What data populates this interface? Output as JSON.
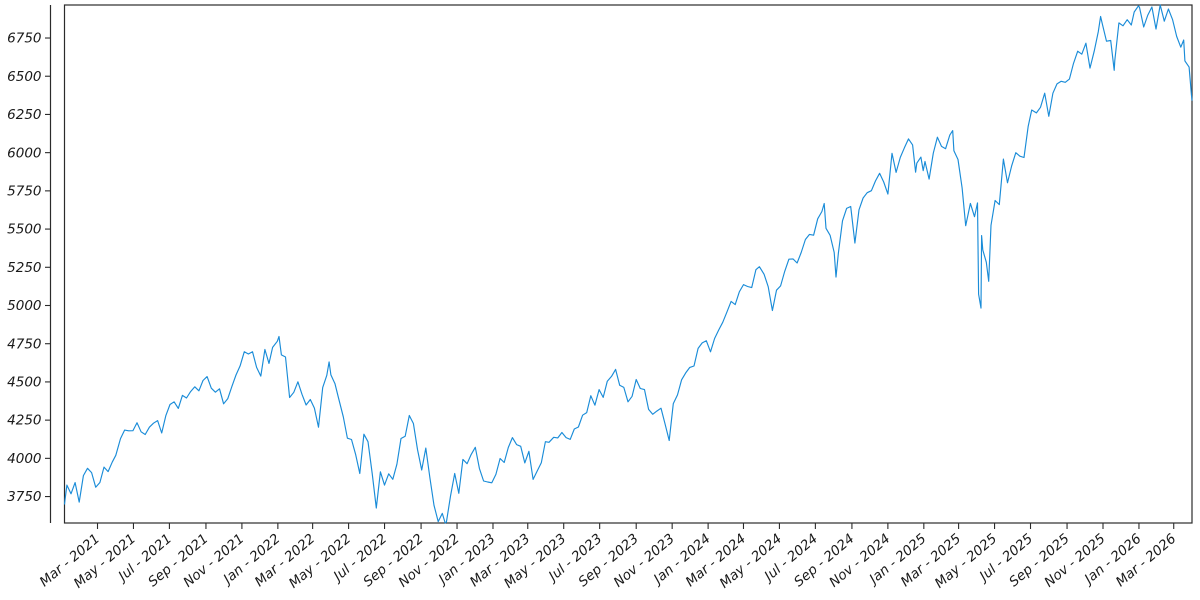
{
  "chart_data": {
    "type": "line",
    "title": "",
    "xlabel": "",
    "ylabel": "",
    "grid": false,
    "legend_position": "none",
    "line_color": "#1a8cd8",
    "axis_color": "#2b2b2b",
    "text_color": "#1a1a1a",
    "background_color": "#ffffff",
    "ylim": [
      3577,
      6966
    ],
    "y_ticks": [
      3750,
      4000,
      4250,
      4500,
      4750,
      5000,
      5250,
      5500,
      5750,
      6000,
      6250,
      6500,
      6750
    ],
    "x_ticks": [
      {
        "t": 59,
        "label": "Mar - 2021"
      },
      {
        "t": 120,
        "label": "May - 2021"
      },
      {
        "t": 181,
        "label": "Jul - 2021"
      },
      {
        "t": 243,
        "label": "Sep - 2021"
      },
      {
        "t": 304,
        "label": "Nov - 2021"
      },
      {
        "t": 365,
        "label": "Jan - 2022"
      },
      {
        "t": 424,
        "label": "Mar - 2022"
      },
      {
        "t": 485,
        "label": "May - 2022"
      },
      {
        "t": 546,
        "label": "Jul - 2022"
      },
      {
        "t": 608,
        "label": "Sep - 2022"
      },
      {
        "t": 669,
        "label": "Nov - 2022"
      },
      {
        "t": 730,
        "label": "Jan - 2023"
      },
      {
        "t": 789,
        "label": "Mar - 2023"
      },
      {
        "t": 850,
        "label": "May - 2023"
      },
      {
        "t": 911,
        "label": "Jul - 2023"
      },
      {
        "t": 973,
        "label": "Sep - 2023"
      },
      {
        "t": 1034,
        "label": "Nov - 2023"
      },
      {
        "t": 1095,
        "label": "Jan - 2024"
      },
      {
        "t": 1155,
        "label": "Mar - 2024"
      },
      {
        "t": 1216,
        "label": "May - 2024"
      },
      {
        "t": 1277,
        "label": "Jul - 2024"
      },
      {
        "t": 1339,
        "label": "Sep - 2024"
      },
      {
        "t": 1400,
        "label": "Nov - 2024"
      },
      {
        "t": 1461,
        "label": "Jan - 2025"
      },
      {
        "t": 1520,
        "label": "Mar - 2025"
      },
      {
        "t": 1581,
        "label": "May - 2025"
      },
      {
        "t": 1642,
        "label": "Jul - 2025"
      },
      {
        "t": 1704,
        "label": "Sep - 2025"
      },
      {
        "t": 1765,
        "label": "Nov - 2025"
      },
      {
        "t": 1826,
        "label": "Jan - 2026"
      },
      {
        "t": 1885,
        "label": "Mar - 2026"
      }
    ],
    "x_unit": "days, t=0 at first tick minus 59 (Jan 1 2021); series spans Jan 2021 - Apr 2026",
    "points": [
      [
        3,
        3701
      ],
      [
        7,
        3825
      ],
      [
        14,
        3768
      ],
      [
        21,
        3841
      ],
      [
        28,
        3714
      ],
      [
        35,
        3887
      ],
      [
        42,
        3935
      ],
      [
        49,
        3907
      ],
      [
        56,
        3811
      ],
      [
        63,
        3842
      ],
      [
        70,
        3943
      ],
      [
        77,
        3913
      ],
      [
        84,
        3975
      ],
      [
        90,
        4020
      ],
      [
        98,
        4129
      ],
      [
        105,
        4185
      ],
      [
        112,
        4180
      ],
      [
        119,
        4181
      ],
      [
        126,
        4233
      ],
      [
        133,
        4174
      ],
      [
        140,
        4156
      ],
      [
        147,
        4204
      ],
      [
        154,
        4230
      ],
      [
        161,
        4247
      ],
      [
        168,
        4166
      ],
      [
        175,
        4281
      ],
      [
        182,
        4352
      ],
      [
        189,
        4370
      ],
      [
        196,
        4327
      ],
      [
        203,
        4412
      ],
      [
        210,
        4395
      ],
      [
        217,
        4437
      ],
      [
        224,
        4468
      ],
      [
        231,
        4442
      ],
      [
        238,
        4509
      ],
      [
        245,
        4535
      ],
      [
        252,
        4459
      ],
      [
        259,
        4433
      ],
      [
        266,
        4455
      ],
      [
        273,
        4357
      ],
      [
        280,
        4391
      ],
      [
        287,
        4471
      ],
      [
        294,
        4545
      ],
      [
        301,
        4605
      ],
      [
        308,
        4698
      ],
      [
        315,
        4683
      ],
      [
        322,
        4698
      ],
      [
        329,
        4595
      ],
      [
        336,
        4538
      ],
      [
        343,
        4712
      ],
      [
        350,
        4621
      ],
      [
        356,
        4726
      ],
      [
        364,
        4766
      ],
      [
        367,
        4797
      ],
      [
        371,
        4677
      ],
      [
        378,
        4663
      ],
      [
        385,
        4398
      ],
      [
        392,
        4432
      ],
      [
        399,
        4501
      ],
      [
        406,
        4419
      ],
      [
        413,
        4349
      ],
      [
        420,
        4385
      ],
      [
        427,
        4329
      ],
      [
        434,
        4204
      ],
      [
        441,
        4463
      ],
      [
        448,
        4543
      ],
      [
        452,
        4631
      ],
      [
        455,
        4546
      ],
      [
        462,
        4488
      ],
      [
        468,
        4393
      ],
      [
        476,
        4272
      ],
      [
        483,
        4132
      ],
      [
        490,
        4123
      ],
      [
        497,
        4024
      ],
      [
        504,
        3901
      ],
      [
        511,
        4158
      ],
      [
        518,
        4109
      ],
      [
        525,
        3901
      ],
      [
        532,
        3675
      ],
      [
        539,
        3912
      ],
      [
        546,
        3825
      ],
      [
        553,
        3899
      ],
      [
        560,
        3863
      ],
      [
        567,
        3962
      ],
      [
        574,
        4130
      ],
      [
        581,
        4145
      ],
      [
        588,
        4280
      ],
      [
        595,
        4228
      ],
      [
        602,
        4058
      ],
      [
        609,
        3924
      ],
      [
        616,
        4067
      ],
      [
        623,
        3873
      ],
      [
        630,
        3693
      ],
      [
        637,
        3586
      ],
      [
        644,
        3640
      ],
      [
        649,
        3577
      ],
      [
        651,
        3583
      ],
      [
        658,
        3753
      ],
      [
        665,
        3901
      ],
      [
        672,
        3771
      ],
      [
        679,
        3993
      ],
      [
        686,
        3965
      ],
      [
        693,
        4026
      ],
      [
        700,
        4072
      ],
      [
        707,
        3934
      ],
      [
        714,
        3852
      ],
      [
        721,
        3845
      ],
      [
        728,
        3840
      ],
      [
        735,
        3895
      ],
      [
        742,
        3999
      ],
      [
        749,
        3973
      ],
      [
        756,
        4071
      ],
      [
        763,
        4136
      ],
      [
        770,
        4090
      ],
      [
        777,
        4079
      ],
      [
        784,
        3970
      ],
      [
        791,
        4046
      ],
      [
        798,
        3862
      ],
      [
        805,
        3917
      ],
      [
        812,
        3971
      ],
      [
        819,
        4109
      ],
      [
        825,
        4105
      ],
      [
        833,
        4138
      ],
      [
        840,
        4134
      ],
      [
        847,
        4169
      ],
      [
        854,
        4136
      ],
      [
        861,
        4124
      ],
      [
        868,
        4192
      ],
      [
        875,
        4205
      ],
      [
        882,
        4282
      ],
      [
        889,
        4299
      ],
      [
        896,
        4410
      ],
      [
        903,
        4348
      ],
      [
        910,
        4450
      ],
      [
        917,
        4399
      ],
      [
        924,
        4505
      ],
      [
        931,
        4536
      ],
      [
        938,
        4582
      ],
      [
        945,
        4478
      ],
      [
        952,
        4464
      ],
      [
        959,
        4370
      ],
      [
        966,
        4406
      ],
      [
        973,
        4516
      ],
      [
        980,
        4457
      ],
      [
        987,
        4450
      ],
      [
        994,
        4320
      ],
      [
        1001,
        4288
      ],
      [
        1008,
        4309
      ],
      [
        1015,
        4328
      ],
      [
        1022,
        4224
      ],
      [
        1029,
        4117
      ],
      [
        1036,
        4358
      ],
      [
        1043,
        4415
      ],
      [
        1050,
        4514
      ],
      [
        1057,
        4559
      ],
      [
        1064,
        4595
      ],
      [
        1071,
        4604
      ],
      [
        1078,
        4719
      ],
      [
        1085,
        4755
      ],
      [
        1092,
        4770
      ],
      [
        1099,
        4697
      ],
      [
        1106,
        4784
      ],
      [
        1113,
        4840
      ],
      [
        1120,
        4891
      ],
      [
        1127,
        4959
      ],
      [
        1134,
        5027
      ],
      [
        1141,
        5006
      ],
      [
        1148,
        5089
      ],
      [
        1155,
        5137
      ],
      [
        1162,
        5124
      ],
      [
        1169,
        5117
      ],
      [
        1176,
        5234
      ],
      [
        1182,
        5254
      ],
      [
        1190,
        5204
      ],
      [
        1197,
        5123
      ],
      [
        1204,
        4967
      ],
      [
        1211,
        5100
      ],
      [
        1218,
        5128
      ],
      [
        1225,
        5223
      ],
      [
        1232,
        5303
      ],
      [
        1239,
        5305
      ],
      [
        1246,
        5278
      ],
      [
        1253,
        5347
      ],
      [
        1260,
        5432
      ],
      [
        1267,
        5465
      ],
      [
        1274,
        5460
      ],
      [
        1281,
        5567
      ],
      [
        1288,
        5615
      ],
      [
        1292,
        5667
      ],
      [
        1295,
        5505
      ],
      [
        1302,
        5459
      ],
      [
        1309,
        5347
      ],
      [
        1312,
        5186
      ],
      [
        1316,
        5344
      ],
      [
        1323,
        5554
      ],
      [
        1330,
        5635
      ],
      [
        1337,
        5648
      ],
      [
        1344,
        5408
      ],
      [
        1351,
        5626
      ],
      [
        1358,
        5703
      ],
      [
        1365,
        5738
      ],
      [
        1372,
        5751
      ],
      [
        1379,
        5815
      ],
      [
        1386,
        5865
      ],
      [
        1393,
        5808
      ],
      [
        1400,
        5729
      ],
      [
        1407,
        5996
      ],
      [
        1414,
        5871
      ],
      [
        1421,
        5969
      ],
      [
        1428,
        6032
      ],
      [
        1435,
        6090
      ],
      [
        1442,
        6051
      ],
      [
        1447,
        5872
      ],
      [
        1449,
        5931
      ],
      [
        1456,
        5971
      ],
      [
        1460,
        5882
      ],
      [
        1463,
        5942
      ],
      [
        1470,
        5827
      ],
      [
        1477,
        5997
      ],
      [
        1484,
        6101
      ],
      [
        1491,
        6041
      ],
      [
        1498,
        6026
      ],
      [
        1505,
        6115
      ],
      [
        1510,
        6144
      ],
      [
        1512,
        6013
      ],
      [
        1519,
        5955
      ],
      [
        1526,
        5770
      ],
      [
        1532,
        5522
      ],
      [
        1540,
        5668
      ],
      [
        1547,
        5581
      ],
      [
        1552,
        5671
      ],
      [
        1554,
        5074
      ],
      [
        1558,
        4983
      ],
      [
        1559,
        5457
      ],
      [
        1561,
        5363
      ],
      [
        1567,
        5283
      ],
      [
        1571,
        5158
      ],
      [
        1575,
        5525
      ],
      [
        1582,
        5687
      ],
      [
        1589,
        5660
      ],
      [
        1596,
        5958
      ],
      [
        1603,
        5803
      ],
      [
        1610,
        5912
      ],
      [
        1617,
        6000
      ],
      [
        1624,
        5977
      ],
      [
        1631,
        5968
      ],
      [
        1638,
        6173
      ],
      [
        1644,
        6279
      ],
      [
        1652,
        6260
      ],
      [
        1659,
        6297
      ],
      [
        1666,
        6389
      ],
      [
        1673,
        6238
      ],
      [
        1680,
        6389
      ],
      [
        1687,
        6450
      ],
      [
        1694,
        6467
      ],
      [
        1701,
        6460
      ],
      [
        1708,
        6481
      ],
      [
        1715,
        6584
      ],
      [
        1722,
        6664
      ],
      [
        1729,
        6644
      ],
      [
        1736,
        6716
      ],
      [
        1743,
        6553
      ],
      [
        1750,
        6664
      ],
      [
        1757,
        6792
      ],
      [
        1761,
        6891
      ],
      [
        1764,
        6840
      ],
      [
        1771,
        6729
      ],
      [
        1778,
        6734
      ],
      [
        1784,
        6539
      ],
      [
        1785,
        6603
      ],
      [
        1792,
        6849
      ],
      [
        1799,
        6830
      ],
      [
        1806,
        6870
      ],
      [
        1813,
        6835
      ],
      [
        1818,
        6920
      ],
      [
        1825,
        6960
      ],
      [
        1827,
        6950
      ],
      [
        1834,
        6822
      ],
      [
        1841,
        6900
      ],
      [
        1848,
        6953
      ],
      [
        1855,
        6809
      ],
      [
        1862,
        6966
      ],
      [
        1869,
        6860
      ],
      [
        1876,
        6940
      ],
      [
        1883,
        6870
      ],
      [
        1890,
        6760
      ],
      [
        1897,
        6690
      ],
      [
        1902,
        6737
      ],
      [
        1904,
        6600
      ],
      [
        1911,
        6560
      ],
      [
        1915,
        6380
      ],
      [
        1916,
        6343
      ]
    ]
  }
}
